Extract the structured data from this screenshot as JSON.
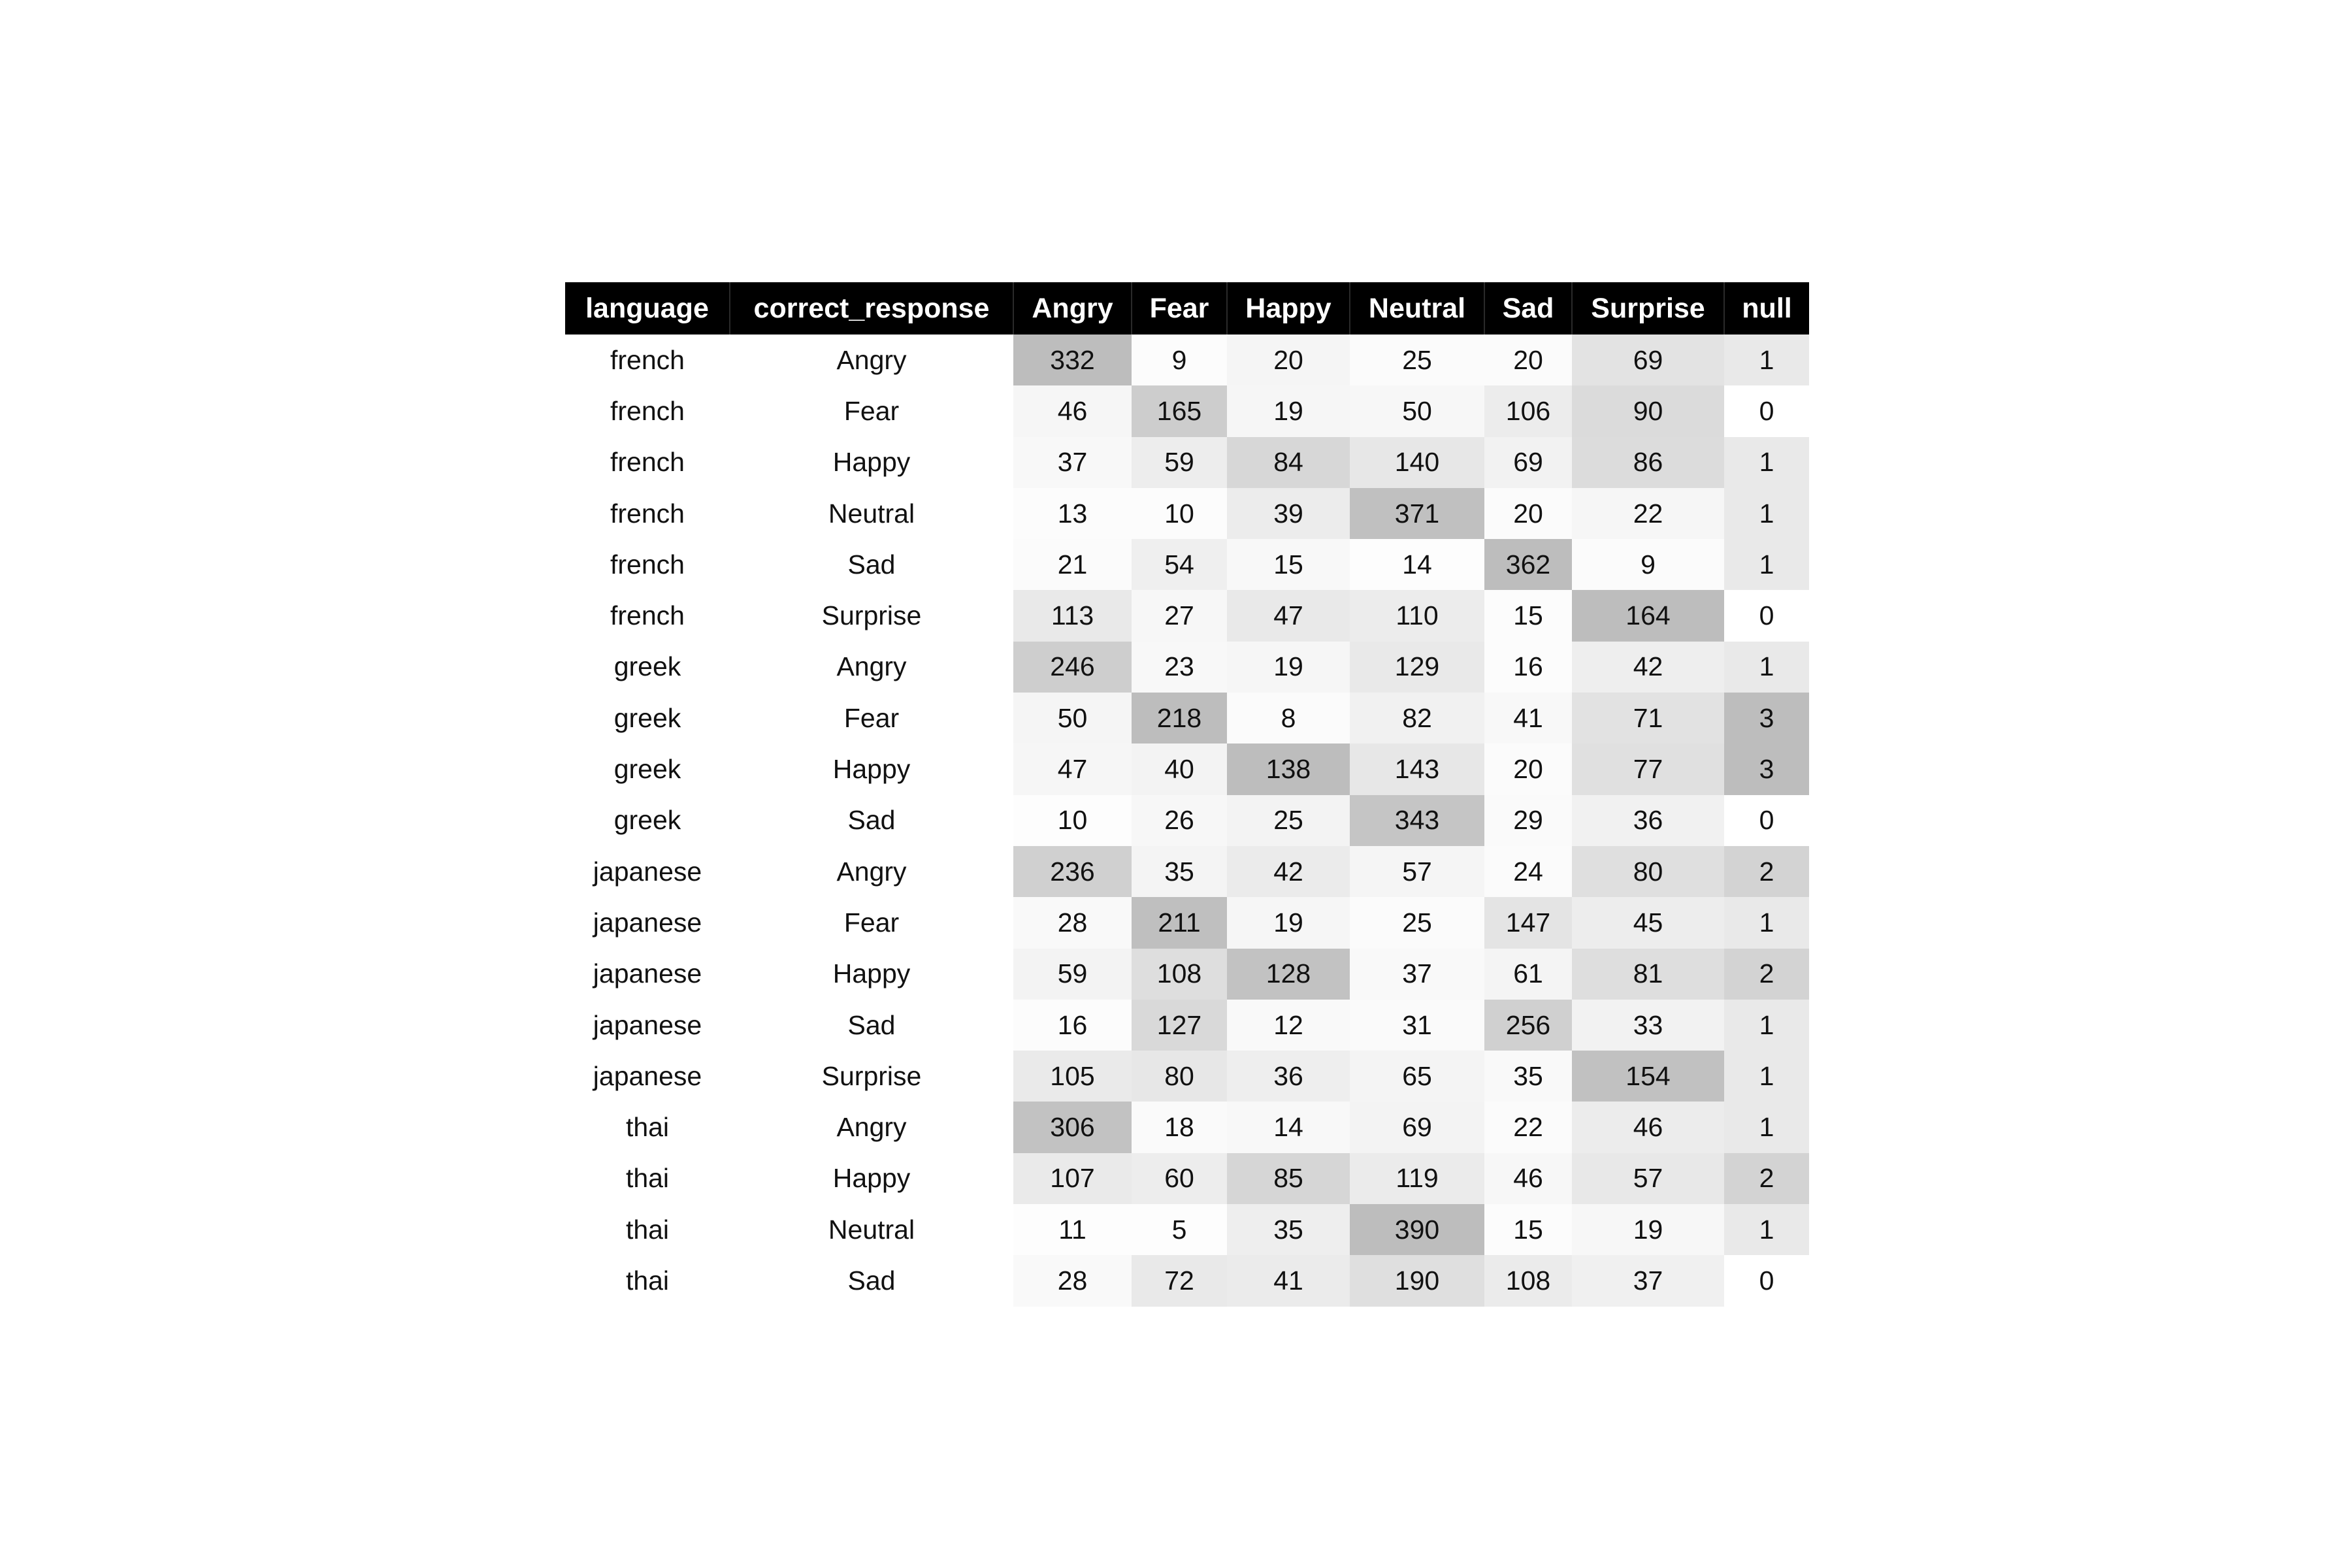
{
  "chart_data": {
    "type": "table",
    "columns": [
      "language",
      "correct_response",
      "Angry",
      "Fear",
      "Happy",
      "Neutral",
      "Sad",
      "Surprise",
      "null"
    ],
    "heatmap_columns": [
      "Angry",
      "Fear",
      "Happy",
      "Neutral",
      "Sad",
      "Surprise",
      "null"
    ],
    "colors": {
      "header_bg": "#000000",
      "header_text": "#ffffff",
      "cell_high": "#bdbdbd",
      "cell_low": "#ffffff"
    },
    "rows": [
      [
        "french",
        "Angry",
        332,
        9,
        20,
        25,
        20,
        69,
        1
      ],
      [
        "french",
        "Fear",
        46,
        165,
        19,
        50,
        106,
        90,
        0
      ],
      [
        "french",
        "Happy",
        37,
        59,
        84,
        140,
        69,
        86,
        1
      ],
      [
        "french",
        "Neutral",
        13,
        10,
        39,
        371,
        20,
        22,
        1
      ],
      [
        "french",
        "Sad",
        21,
        54,
        15,
        14,
        362,
        9,
        1
      ],
      [
        "french",
        "Surprise",
        113,
        27,
        47,
        110,
        15,
        164,
        0
      ],
      [
        "greek",
        "Angry",
        246,
        23,
        19,
        129,
        16,
        42,
        1
      ],
      [
        "greek",
        "Fear",
        50,
        218,
        8,
        82,
        41,
        71,
        3
      ],
      [
        "greek",
        "Happy",
        47,
        40,
        138,
        143,
        20,
        77,
        3
      ],
      [
        "greek",
        "Sad",
        10,
        26,
        25,
        343,
        29,
        36,
        0
      ],
      [
        "japanese",
        "Angry",
        236,
        35,
        42,
        57,
        24,
        80,
        2
      ],
      [
        "japanese",
        "Fear",
        28,
        211,
        19,
        25,
        147,
        45,
        1
      ],
      [
        "japanese",
        "Happy",
        59,
        108,
        128,
        37,
        61,
        81,
        2
      ],
      [
        "japanese",
        "Sad",
        16,
        127,
        12,
        31,
        256,
        33,
        1
      ],
      [
        "japanese",
        "Surprise",
        105,
        80,
        36,
        65,
        35,
        154,
        1
      ],
      [
        "thai",
        "Angry",
        306,
        18,
        14,
        69,
        22,
        46,
        1
      ],
      [
        "thai",
        "Happy",
        107,
        60,
        85,
        119,
        46,
        57,
        2
      ],
      [
        "thai",
        "Neutral",
        11,
        5,
        35,
        390,
        15,
        19,
        1
      ],
      [
        "thai",
        "Sad",
        28,
        72,
        41,
        190,
        108,
        37,
        0
      ]
    ]
  }
}
